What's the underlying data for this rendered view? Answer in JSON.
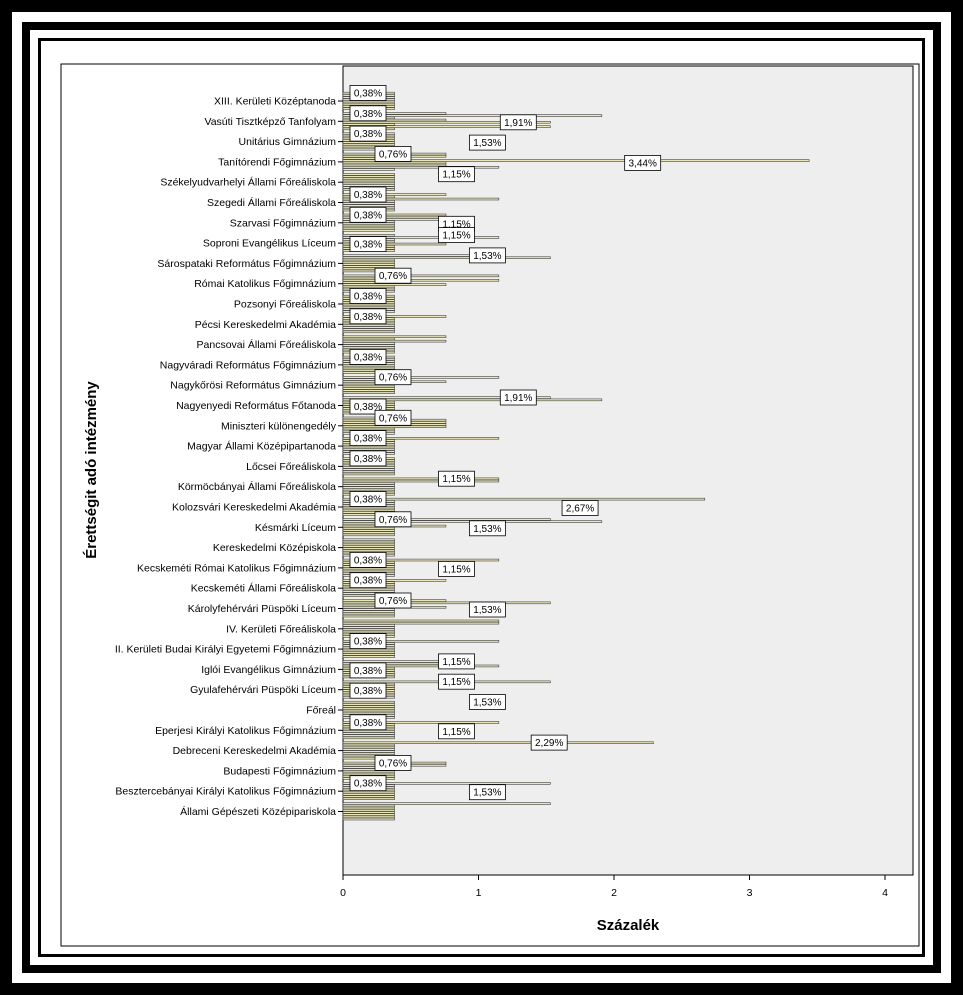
{
  "chart_data": {
    "type": "bar",
    "orientation": "horizontal",
    "xlabel": "Százalék",
    "ylabel": "Érettségit adó intézmény",
    "xlim": [
      0,
      4.2
    ],
    "xticks": [
      "0",
      "1",
      "2",
      "3",
      "4"
    ],
    "colors": {
      "bar": "#e8e6ba",
      "bar_edge": "#404040",
      "plot_bg": "#eeeeee"
    },
    "categories": [
      "XIII. Kerületi Középtanoda",
      "Vasúti Tisztképző Tanfolyam",
      "Unitárius Gimnázium",
      "Tanítórendi Főgimnázium",
      "Székelyudvarhelyi Állami Főreáliskola",
      "Szegedi Állami Főreáliskola",
      "Szarvasi Főgimnázium",
      "Soproni Evangélikus Líceum",
      "Sárospataki Református Főgimnázium",
      "Római Katolikus Főgimnázium",
      "Pozsonyi Főreáliskola",
      "Pécsi Kereskedelmi Akadémia",
      "Pancsovai Állami Főreáliskola",
      "Nagyváradi Református Főgimnázium",
      "Nagykőrösi Református Gimnázium",
      "Nagyenyedi Református Főtanoda",
      "Miniszteri különengedély",
      "Magyar Állami Középipartanoda",
      "Lőcsei Főreáliskola",
      "Körmöcbányai Állami Főreáliskola",
      "Kolozsvári Kereskedelmi Akadémia",
      "Késmárki Líceum",
      "Kereskedelmi Középiskola",
      "Kecskeméti Római Katolikus Főgimnázium",
      "Kecskeméti Állami Főreáliskola",
      "Károlyfehérvári Püspöki Líceum",
      "IV. Kerületi Főreáliskola",
      "II. Kerületi Budai Királyi Egyetemi Főgimnázium",
      "Iglói Evangélikus Gimnázium",
      "Gyulafehérvári Püspöki Líceum",
      "Főreál",
      "Eperjesi Királyi Katolikus Főgimnázium",
      "Debreceni Kereskedelmi Akadémia",
      "Budapesti Főgimnázium",
      "Besztercebányai Királyi Katolikus Főgimnázium",
      "Állami Gépészeti Középipariskola"
    ],
    "values": [
      [
        0.38,
        0.38,
        0.38,
        0.38,
        0.38,
        0.38,
        0.38,
        0.38
      ],
      [
        0.76,
        1.91,
        0.38,
        0.76,
        1.53,
        0.38,
        1.53,
        0.38
      ],
      [
        0.38,
        0.38,
        0.38,
        0.38,
        0.38,
        0.38,
        0.38,
        0.38
      ],
      [
        0.76,
        0.76,
        0.38,
        3.44,
        0.76,
        0.76,
        1.15,
        0.38
      ],
      [
        0.38,
        0.38,
        0.38,
        0.38,
        0.38,
        0.38,
        0.38,
        0.38
      ],
      [
        0.76,
        0.38,
        1.15,
        0.38,
        0.38,
        0.38,
        0.38,
        0.38
      ],
      [
        0.76,
        0.76,
        0.76,
        0.38,
        0.38,
        0.38,
        0.38,
        0.38
      ],
      [
        0.38,
        1.15,
        0.38,
        0.38,
        0.76,
        0.38,
        0.38,
        0.38
      ],
      [
        1.15,
        1.53,
        0.38,
        0.38,
        0.38,
        0.38,
        0.38,
        0.38
      ],
      [
        1.15,
        0.38,
        1.15,
        0.38,
        0.76,
        0.38,
        0.38,
        0.38
      ],
      [
        0.38,
        0.38,
        0.38,
        0.38,
        0.38,
        0.38,
        0.38,
        0.38
      ],
      [
        0.76,
        0.38,
        0.38,
        0.38,
        0.38,
        0.38,
        0.38,
        0.38
      ],
      [
        0.76,
        0.38,
        0.76,
        0.38,
        0.38,
        0.38,
        0.38,
        0.38
      ],
      [
        0.38,
        0.38,
        0.38,
        0.38,
        0.38,
        0.38,
        0.38,
        0.38
      ],
      [
        1.15,
        0.38,
        0.76,
        0.38,
        0.38,
        0.38,
        0.38,
        0.38
      ],
      [
        1.53,
        1.91,
        0.38,
        0.38,
        0.38,
        0.38,
        0.38,
        0.38
      ],
      [
        0.38,
        0.76,
        0.76,
        0.76,
        0.76,
        0.38,
        0.38,
        0.38
      ],
      [
        1.15,
        0.38,
        0.38,
        0.38,
        0.38,
        0.38,
        0.38,
        0.38
      ],
      [
        0.38,
        0.38,
        0.38,
        0.38,
        0.38,
        0.38,
        0.38,
        0.38
      ],
      [
        1.15,
        1.15,
        0.38,
        0.38,
        0.38,
        0.38,
        0.38,
        0.38
      ],
      [
        2.67,
        0.38,
        0.38,
        0.38,
        0.38,
        0.38,
        0.38,
        0.38
      ],
      [
        1.53,
        1.91,
        0.38,
        0.76,
        0.38,
        0.38,
        0.38,
        0.38
      ],
      [
        0.38,
        0.38,
        0.38,
        0.38,
        0.38,
        0.38,
        0.38,
        0.38
      ],
      [
        1.15,
        0.38,
        0.38,
        0.38,
        0.38,
        0.38,
        0.38,
        0.38
      ],
      [
        0.76,
        0.38,
        0.38,
        0.38,
        0.38,
        0.38,
        0.38,
        0.38
      ],
      [
        0.76,
        1.53,
        0.38,
        0.76,
        0.38,
        0.38,
        0.38,
        0.38
      ],
      [
        1.15,
        1.15,
        0.38,
        0.38,
        0.38,
        0.38,
        0.38,
        0.38
      ],
      [
        1.15,
        0.38,
        0.38,
        0.38,
        0.38,
        0.38,
        0.38,
        0.38
      ],
      [
        0.76,
        0.76,
        1.15,
        0.38,
        0.38,
        0.38,
        0.38,
        0.38
      ],
      [
        1.53,
        0.38,
        0.38,
        0.38,
        0.38,
        0.38,
        0.38,
        0.38
      ],
      [
        0.38,
        0.38,
        0.38,
        0.38,
        0.38,
        0.38,
        0.38,
        0.38
      ],
      [
        1.15,
        0.38,
        0.38,
        0.38,
        0.38,
        0.38,
        0.38,
        0.38
      ],
      [
        2.29,
        0.38,
        0.38,
        0.38,
        0.38,
        0.38,
        0.38,
        0.38
      ],
      [
        0.76,
        0.76,
        0.38,
        0.38,
        0.38,
        0.38,
        0.38,
        0.38
      ],
      [
        1.53,
        0.38,
        0.38,
        0.38,
        0.38,
        0.38,
        0.38,
        0.38
      ],
      [
        1.53,
        0.38,
        0.38,
        0.38,
        0.38,
        0.38,
        0.38,
        0.38
      ]
    ],
    "labels": [
      [
        "0,38%"
      ],
      [
        "0,38%",
        "1,91%"
      ],
      [
        "0,38%",
        "1,53%"
      ],
      [
        "0,76%",
        "3,44%"
      ],
      [
        "1,15%"
      ],
      [
        "0,38%"
      ],
      [
        "0,38%",
        "1,15%"
      ],
      [
        "1,15%",
        "0,38%"
      ],
      [
        "1,53%"
      ],
      [
        "0,76%"
      ],
      [
        "0,38%"
      ],
      [
        "0,38%"
      ],
      [],
      [
        "0,38%"
      ],
      [
        "0,76%"
      ],
      [
        "1,91%",
        "0,38%"
      ],
      [
        "0,76%"
      ],
      [
        "0,38%"
      ],
      [
        "0,38%"
      ],
      [
        "1,15%"
      ],
      [
        "0,38%",
        "2,67%"
      ],
      [
        "0,76%",
        "1,53%"
      ],
      [],
      [
        "0,38%",
        "1,15%"
      ],
      [
        "0,38%"
      ],
      [
        "0,76%",
        "1,53%"
      ],
      [],
      [
        "0,38%"
      ],
      [
        "1,15%",
        "0,38%"
      ],
      [
        "1,15%",
        "0,38%"
      ],
      [
        "1,53%"
      ],
      [
        "0,38%",
        "1,15%"
      ],
      [
        "2,29%"
      ],
      [
        "0,76%"
      ],
      [
        "0,38%",
        "1,53%"
      ],
      []
    ]
  }
}
